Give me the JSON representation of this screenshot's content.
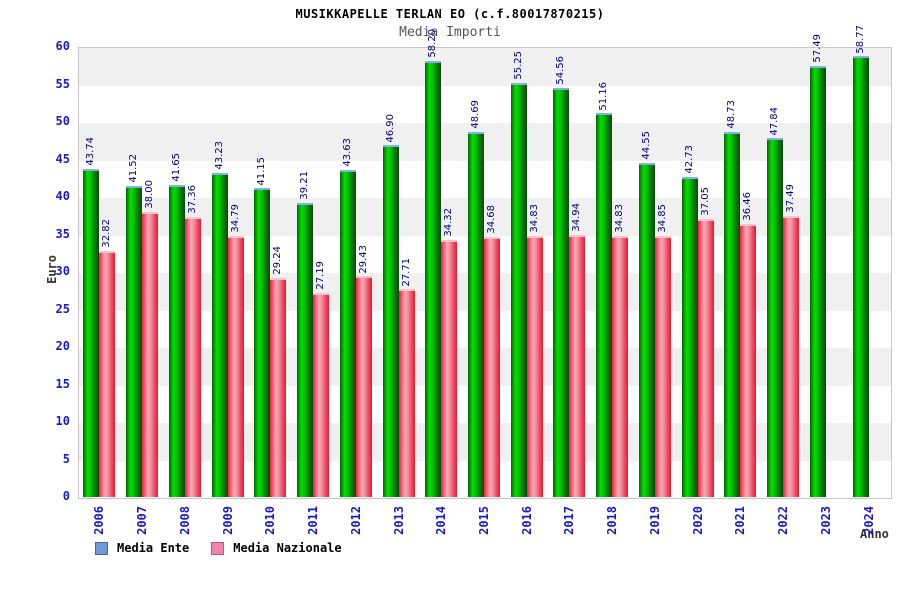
{
  "header": {
    "title": "MUSIKKAPELLE TERLAN EO (c.f.80017870215)",
    "subtitle": "Media Importi"
  },
  "chart_data": {
    "type": "bar",
    "title": "MUSIKKAPELLE TERLAN EO (c.f.80017870215)",
    "subtitle": "Media Importi",
    "xlabel": "Anno",
    "ylabel": "Euro",
    "ylim": [
      0,
      60
    ],
    "ytick_step": 5,
    "grid": "horizontal-bands-alternating",
    "band_colors": [
      "#ffffff",
      "#f0f0f0"
    ],
    "legend_position": "bottom-left",
    "value_label_format": "2-decimals-rotated-90",
    "categories": [
      "2006",
      "2007",
      "2008",
      "2009",
      "2010",
      "2011",
      "2012",
      "2013",
      "2014",
      "2015",
      "2016",
      "2017",
      "2018",
      "2019",
      "2020",
      "2021",
      "2022",
      "2023",
      "2024"
    ],
    "series": [
      {
        "name": "Media Ente",
        "bar_color": "#00c400",
        "legend_color": "#6e9bd8",
        "legend_border": "#44699a",
        "values": [
          43.74,
          41.52,
          41.65,
          43.23,
          41.15,
          39.21,
          43.63,
          46.9,
          58.2,
          48.69,
          55.25,
          54.56,
          51.16,
          44.55,
          42.73,
          48.73,
          47.84,
          57.49,
          58.77
        ]
      },
      {
        "name": "Media Nazionale",
        "bar_color": "#ee1634",
        "legend_color": "#ef85ad",
        "legend_border": "#b95580",
        "values": [
          32.82,
          38.0,
          37.36,
          34.79,
          29.24,
          27.19,
          29.43,
          27.71,
          34.32,
          34.68,
          34.83,
          34.94,
          34.83,
          34.85,
          37.05,
          36.46,
          37.49,
          null,
          null
        ]
      }
    ],
    "text_colors": {
      "title": "#000000",
      "subtitle": "#555555",
      "axis_titles": "#333333",
      "tick_labels": "#1a1acc",
      "value_labels": "#000080"
    }
  }
}
